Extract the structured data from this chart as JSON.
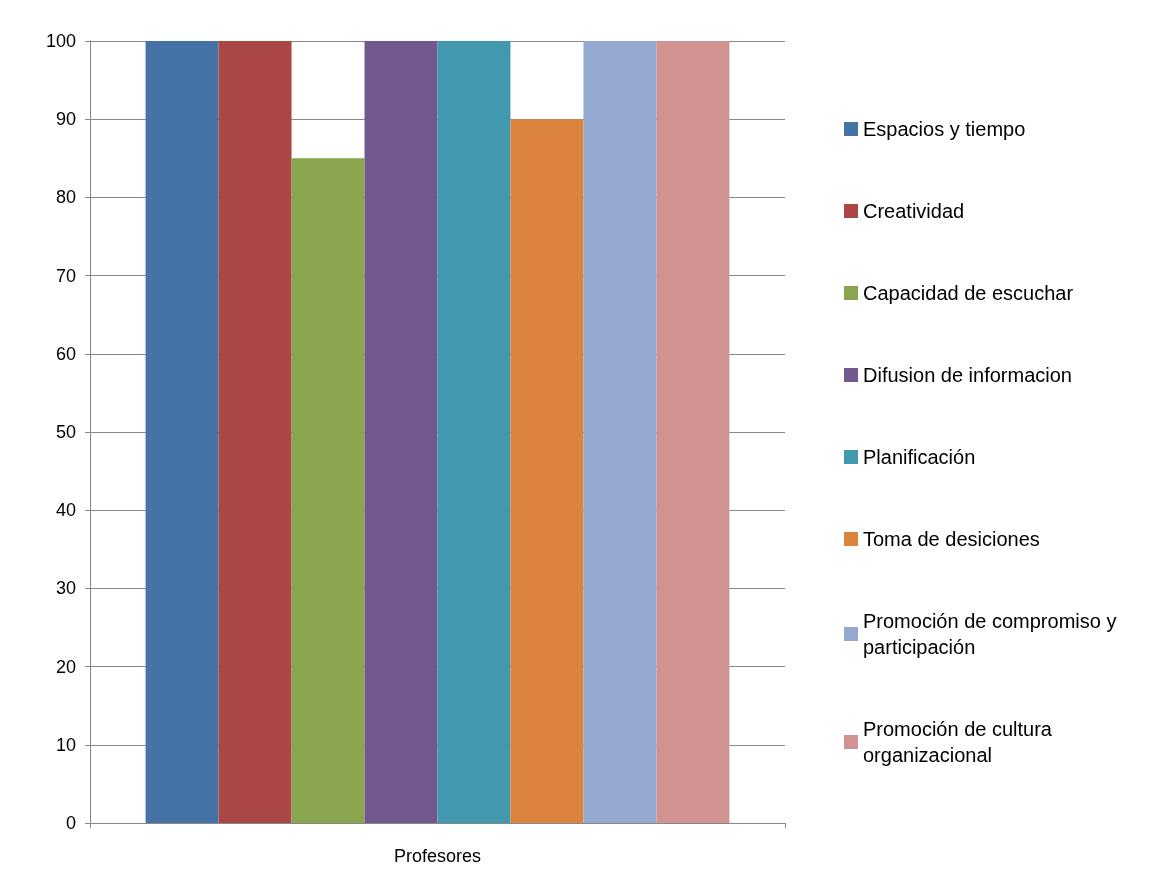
{
  "chart_data": {
    "type": "bar",
    "categories": [
      "Profesores"
    ],
    "series": [
      {
        "name": "Espacios y tiempo",
        "color": "#4572a7",
        "values": [
          100
        ]
      },
      {
        "name": "Creatividad",
        "color": "#aa4643",
        "values": [
          100
        ]
      },
      {
        "name": "Capacidad de escuchar",
        "color": "#89a54e",
        "values": [
          85
        ]
      },
      {
        "name": "Difusion de informacion",
        "color": "#71588f",
        "values": [
          100
        ]
      },
      {
        "name": "Planificación",
        "color": "#4198af",
        "values": [
          100
        ]
      },
      {
        "name": "Toma de desiciones",
        "color": "#db843d",
        "values": [
          90
        ]
      },
      {
        "name": "Promoción de compromiso y participación",
        "color": "#93a9cf",
        "values": [
          100
        ]
      },
      {
        "name": "Promoción de cultura organizacional",
        "color": "#d19392",
        "values": [
          100
        ]
      }
    ],
    "ylim": [
      0,
      100
    ],
    "yticks": [
      0,
      10,
      20,
      30,
      40,
      50,
      60,
      70,
      80,
      90,
      100
    ],
    "grid": "y",
    "legend": "right"
  }
}
